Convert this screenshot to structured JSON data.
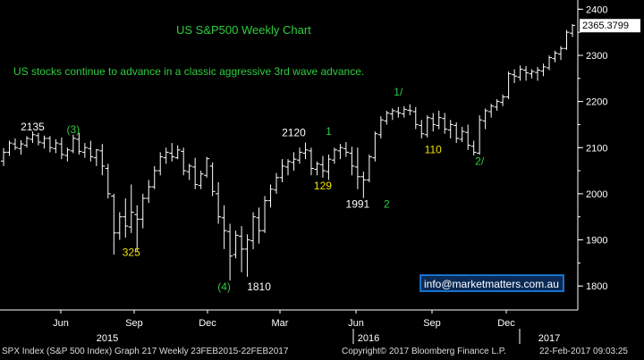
{
  "chart_data": {
    "type": "ohlc",
    "title": "US S&P500 Weekly Chart",
    "subtitle": "US stocks continue to advance in a classic aggressive 3rd wave advance.",
    "y_ticks": [
      1800,
      1900,
      2000,
      2100,
      2200,
      2300,
      2400
    ],
    "ylim": [
      1750,
      2420
    ],
    "last_price": "2365.3799",
    "x_month_labels": [
      "Jun",
      "Sep",
      "Dec",
      "Mar",
      "Jun",
      "Sep",
      "Dec"
    ],
    "x_year_labels": [
      "2015",
      "2016",
      "2017"
    ],
    "watermark": "info@marketmatters.com.au",
    "grid": false,
    "series": [
      {
        "values": [
          [
            2071,
            2099,
            2060,
            2090
          ],
          [
            2090,
            2115,
            2082,
            2110
          ],
          [
            2108,
            2120,
            2095,
            2100
          ],
          [
            2098,
            2116,
            2085,
            2108
          ],
          [
            2105,
            2125,
            2100,
            2120
          ],
          [
            2118,
            2135,
            2110,
            2128
          ],
          [
            2126,
            2132,
            2105,
            2112
          ],
          [
            2110,
            2126,
            2098,
            2120
          ],
          [
            2120,
            2125,
            2090,
            2100
          ],
          [
            2098,
            2118,
            2088,
            2110
          ],
          [
            2108,
            2122,
            2075,
            2085
          ],
          [
            2083,
            2100,
            2070,
            2095
          ],
          [
            2093,
            2128,
            2088,
            2120
          ],
          [
            2118,
            2132,
            2085,
            2092
          ],
          [
            2090,
            2110,
            2078,
            2100
          ],
          [
            2098,
            2115,
            2070,
            2080
          ],
          [
            2078,
            2097,
            2060,
            2095
          ],
          [
            2093,
            2108,
            2040,
            2060
          ],
          [
            2055,
            2065,
            1990,
            2000
          ],
          [
            1995,
            2000,
            1868,
            1915
          ],
          [
            1915,
            1960,
            1900,
            1950
          ],
          [
            1950,
            1990,
            1905,
            1930
          ],
          [
            1928,
            2020,
            1915,
            1960
          ],
          [
            1955,
            1975,
            1875,
            1945
          ],
          [
            1945,
            2000,
            1925,
            1990
          ],
          [
            1990,
            2030,
            1980,
            2015
          ],
          [
            2015,
            2060,
            2010,
            2050
          ],
          [
            2050,
            2090,
            2040,
            2080
          ],
          [
            2078,
            2100,
            2065,
            2090
          ],
          [
            2088,
            2110,
            2070,
            2080
          ],
          [
            2078,
            2105,
            2075,
            2095
          ],
          [
            2092,
            2100,
            2040,
            2050
          ],
          [
            2048,
            2065,
            2030,
            2060
          ],
          [
            2058,
            2078,
            2010,
            2020
          ],
          [
            2018,
            2050,
            2010,
            2043
          ],
          [
            2040,
            2080,
            2035,
            2076
          ],
          [
            2060,
            2068,
            1995,
            2005
          ],
          [
            2000,
            2025,
            1935,
            1950
          ],
          [
            1948,
            1975,
            1880,
            1920
          ],
          [
            1918,
            1935,
            1812,
            1865
          ],
          [
            1868,
            1920,
            1860,
            1910
          ],
          [
            1908,
            1930,
            1830,
            1880
          ],
          [
            1880,
            1912,
            1820,
            1900
          ],
          [
            1898,
            1960,
            1880,
            1950
          ],
          [
            1948,
            1970,
            1892,
            1920
          ],
          [
            1920,
            1995,
            1915,
            1985
          ],
          [
            1985,
            2020,
            1970,
            2010
          ],
          [
            2008,
            2045,
            2000,
            2035
          ],
          [
            2035,
            2075,
            2025,
            2060
          ],
          [
            2058,
            2075,
            2040,
            2070
          ],
          [
            2068,
            2090,
            2050,
            2075
          ],
          [
            2073,
            2100,
            2065,
            2090
          ],
          [
            2088,
            2111,
            2075,
            2095
          ],
          [
            2093,
            2100,
            2040,
            2055
          ],
          [
            2053,
            2070,
            2040,
            2065
          ],
          [
            2063,
            2082,
            2035,
            2050
          ],
          [
            2048,
            2085,
            2030,
            2075
          ],
          [
            2073,
            2100,
            2065,
            2095
          ],
          [
            2093,
            2108,
            2075,
            2100
          ],
          [
            2098,
            2112,
            2080,
            2090
          ],
          [
            2088,
            2102,
            2040,
            2060
          ],
          [
            2058,
            2100,
            2010,
            2037
          ],
          [
            2037,
            2048,
            1991,
            2030
          ],
          [
            2030,
            2085,
            2025,
            2080
          ],
          [
            2078,
            2135,
            2070,
            2130
          ],
          [
            2128,
            2168,
            2120,
            2160
          ],
          [
            2158,
            2180,
            2150,
            2175
          ],
          [
            2173,
            2185,
            2160,
            2180
          ],
          [
            2178,
            2188,
            2165,
            2175
          ],
          [
            2173,
            2190,
            2165,
            2183
          ],
          [
            2181,
            2194,
            2170,
            2180
          ],
          [
            2178,
            2188,
            2140,
            2150
          ],
          [
            2148,
            2160,
            2120,
            2130
          ],
          [
            2128,
            2170,
            2122,
            2165
          ],
          [
            2163,
            2175,
            2135,
            2150
          ],
          [
            2148,
            2180,
            2140,
            2165
          ],
          [
            2163,
            2175,
            2130,
            2140
          ],
          [
            2138,
            2160,
            2120,
            2150
          ],
          [
            2148,
            2155,
            2110,
            2120
          ],
          [
            2118,
            2145,
            2112,
            2135
          ],
          [
            2133,
            2150,
            2095,
            2105
          ],
          [
            2103,
            2115,
            2083,
            2090
          ],
          [
            2088,
            2170,
            2085,
            2160
          ],
          [
            2158,
            2185,
            2140,
            2180
          ],
          [
            2178,
            2195,
            2165,
            2190
          ],
          [
            2188,
            2205,
            2180,
            2200
          ],
          [
            2198,
            2215,
            2190,
            2210
          ],
          [
            2210,
            2265,
            2205,
            2260
          ],
          [
            2258,
            2270,
            2240,
            2255
          ],
          [
            2253,
            2278,
            2245,
            2270
          ],
          [
            2268,
            2277,
            2245,
            2262
          ],
          [
            2260,
            2270,
            2250,
            2265
          ],
          [
            2263,
            2275,
            2245,
            2268
          ],
          [
            2266,
            2282,
            2255,
            2275
          ],
          [
            2273,
            2300,
            2268,
            2295
          ],
          [
            2293,
            2310,
            2285,
            2305
          ],
          [
            2303,
            2320,
            2290,
            2315
          ],
          [
            2315,
            2355,
            2312,
            2350
          ],
          [
            2348,
            2368,
            2340,
            2365
          ]
        ]
      }
    ],
    "annotations": [
      {
        "text": "2135",
        "color": "#ffffff",
        "x": 5,
        "y": 2137
      },
      {
        "text": "(3)",
        "color": "#2ecc40",
        "x": 12,
        "y": 2131
      },
      {
        "text": "325",
        "color": "#f2e200",
        "x": 22,
        "y": 1865
      },
      {
        "text": "(4)",
        "color": "#2ecc40",
        "x": 38,
        "y": 1791
      },
      {
        "text": "1810",
        "color": "#ffffff",
        "x": 44,
        "y": 1791
      },
      {
        "text": "2120",
        "color": "#ffffff",
        "x": 50,
        "y": 2125
      },
      {
        "text": "1",
        "color": "#2ecc40",
        "x": 56,
        "y": 2128
      },
      {
        "text": "129",
        "color": "#f2e200",
        "x": 55,
        "y": 2009
      },
      {
        "text": "1991",
        "color": "#ffffff",
        "x": 61,
        "y": 1970
      },
      {
        "text": "2",
        "color": "#2ecc40",
        "x": 66,
        "y": 1970
      },
      {
        "text": "1/",
        "color": "#2ecc40",
        "x": 68,
        "y": 2213
      },
      {
        "text": "110",
        "color": "#f2e200",
        "x": 74,
        "y": 2088
      },
      {
        "text": "2/",
        "color": "#2ecc40",
        "x": 82,
        "y": 2063
      }
    ]
  },
  "footer": {
    "instrument": "SPX Index (S&P 500 Index) Graph 217  Weekly 23FEB2015-22FEB2017",
    "copyright": "Copyright© 2017 Bloomberg Finance L.P.",
    "timestamp": "22-Feb-2017 09:03:25"
  },
  "colors": {
    "background": "#000000",
    "bars": "#ffffff",
    "title": "#2ecc40",
    "subtitle": "#2ecc40",
    "axis_text": "#ffffff",
    "price_tag_bg": "#ffffff",
    "price_tag_text": "#000000",
    "watermark_border": "#1e90ff",
    "watermark_text": "#ffffff",
    "watermark_bg": "#0a2a55"
  }
}
